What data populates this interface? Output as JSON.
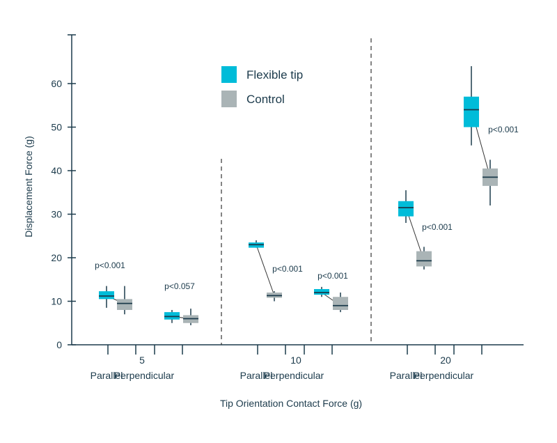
{
  "chart_data": {
    "type": "box",
    "ylabel": "Displacement Force (g)",
    "xlabel": "Tip Orientation Contact Force (g)",
    "ylim": [
      0,
      70
    ],
    "yticks": [
      0,
      10,
      20,
      30,
      40,
      50,
      60
    ],
    "colors": {
      "flexible": "#00bcd9",
      "control": "#aab4b6",
      "median": "#1b3a4b",
      "whisker": "#1b3a4b",
      "connector": "#333333",
      "axis": "#1b3a4b"
    },
    "legend": {
      "position": "top-center",
      "items": [
        {
          "key": "flexible",
          "label": "Flexible tip"
        },
        {
          "key": "control",
          "label": "Control"
        }
      ]
    },
    "groups": [
      {
        "force": "5",
        "orientations": [
          {
            "label": "Parallel",
            "p": "p<0.001",
            "flexible": {
              "min": 8.5,
              "q1": 10.5,
              "median": 11.2,
              "q3": 12.3,
              "max": 13.5
            },
            "control": {
              "min": 7.0,
              "q1": 8.0,
              "median": 9.5,
              "q3": 10.5,
              "max": 13.5
            }
          },
          {
            "label": "Perpendicular",
            "p": "p<0.057",
            "flexible": {
              "min": 5.0,
              "q1": 5.8,
              "median": 6.5,
              "q3": 7.5,
              "max": 8.0
            },
            "control": {
              "min": 4.5,
              "q1": 5.0,
              "median": 6.0,
              "q3": 6.8,
              "max": 8.3
            }
          }
        ]
      },
      {
        "force": "10",
        "orientations": [
          {
            "label": "Parallel",
            "p": "p<0.001",
            "flexible": {
              "min": 22.3,
              "q1": 22.3,
              "median": 23.0,
              "q3": 23.5,
              "max": 24.0
            },
            "control": {
              "min": 10.0,
              "q1": 10.8,
              "median": 11.3,
              "q3": 12.0,
              "max": 12.3
            }
          },
          {
            "label": "Perpendicular",
            "p": "p<0.001",
            "flexible": {
              "min": 11.0,
              "q1": 11.5,
              "median": 12.0,
              "q3": 12.8,
              "max": 13.3
            },
            "control": {
              "min": 7.5,
              "q1": 8.0,
              "median": 9.0,
              "q3": 11.0,
              "max": 12.0
            }
          }
        ]
      },
      {
        "force": "20",
        "orientations": [
          {
            "label": "Parallel",
            "p": "p<0.001",
            "flexible": {
              "min": 28.0,
              "q1": 29.5,
              "median": 31.5,
              "q3": 33.0,
              "max": 35.5
            },
            "control": {
              "min": 17.3,
              "q1": 18.0,
              "median": 19.3,
              "q3": 21.5,
              "max": 22.5
            }
          },
          {
            "label": "Perpendicular",
            "p": "p<0.001",
            "flexible": {
              "min": 45.8,
              "q1": 50.0,
              "median": 54.0,
              "q3": 57.0,
              "max": 64.0
            },
            "control": {
              "min": 32.0,
              "q1": 36.5,
              "median": 38.5,
              "q3": 40.5,
              "max": 42.5
            }
          }
        ]
      }
    ]
  }
}
